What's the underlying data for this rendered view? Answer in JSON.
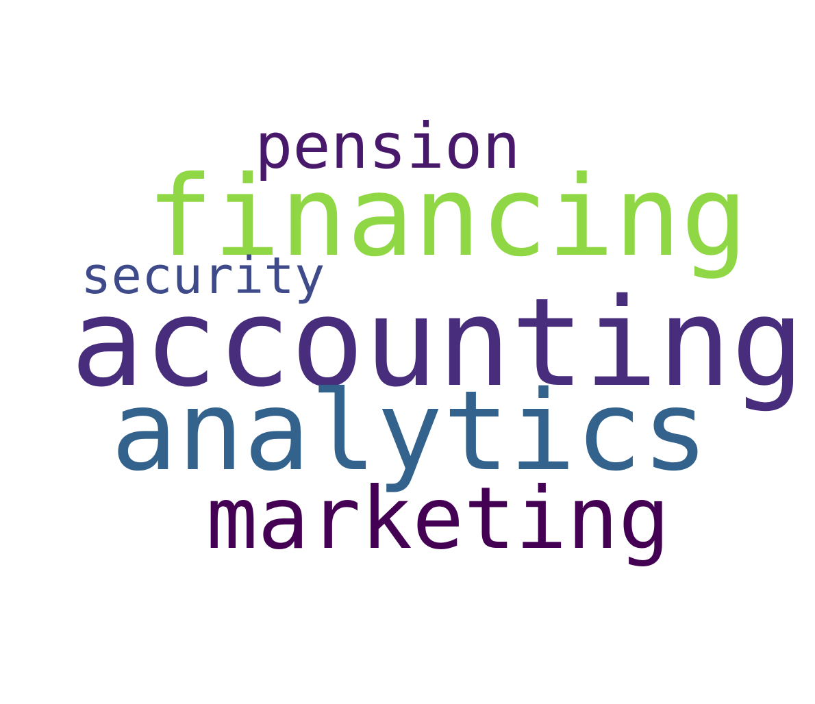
{
  "word_cloud": {
    "words": [
      {
        "text": "pension",
        "color": "#48186a"
      },
      {
        "text": "financing",
        "color": "#8fd744"
      },
      {
        "text": "security",
        "color": "#3e4a89"
      },
      {
        "text": "accounting",
        "color": "#472d7b"
      },
      {
        "text": "analytics",
        "color": "#33638d"
      },
      {
        "text": "marketing",
        "color": "#440154"
      }
    ]
  }
}
